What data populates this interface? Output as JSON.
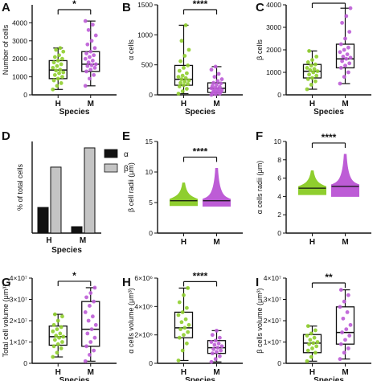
{
  "colors": {
    "human": "#8fce2e",
    "mouse": "#bd5cd6",
    "alpha_bar": "#111111",
    "beta_bar": "#c4c4c4"
  },
  "chart_data": [
    {
      "panel": "A",
      "type": "box",
      "ylabel": "Number of cells",
      "xlabel": "Species",
      "categories": [
        "H",
        "M"
      ],
      "ylim": [
        0,
        5000
      ],
      "yticks": [
        {
          "v": 0,
          "t": "0"
        },
        {
          "v": 1000,
          "t": "1000"
        },
        {
          "v": 2000,
          "t": "2000"
        },
        {
          "v": 3000,
          "t": "3000"
        },
        {
          "v": 4000,
          "t": "4000"
        }
      ],
      "significance": "*",
      "boxes": [
        {
          "min": 300,
          "q1": 900,
          "median": 1380,
          "q3": 1900,
          "max": 2600
        },
        {
          "min": 500,
          "q1": 1300,
          "median": 1700,
          "q3": 2400,
          "max": 4100
        }
      ],
      "points": [
        [
          300,
          500,
          650,
          800,
          900,
          1000,
          1100,
          1200,
          1250,
          1350,
          1400,
          1500,
          1600,
          1700,
          1800,
          1900,
          2000,
          2100,
          2200,
          2400,
          2500,
          2600
        ],
        [
          500,
          900,
          1100,
          1300,
          1400,
          1500,
          1600,
          1650,
          1700,
          1800,
          1900,
          2000,
          2100,
          2200,
          2300,
          2400,
          2600,
          2800,
          3000,
          3300,
          3600,
          3900,
          4100
        ]
      ]
    },
    {
      "panel": "B",
      "type": "box",
      "ylabel": "α cells",
      "xlabel": "Species",
      "categories": [
        "H",
        "M"
      ],
      "ylim": [
        0,
        1500
      ],
      "yticks": [
        {
          "v": 0,
          "t": "0"
        },
        {
          "v": 500,
          "t": "500"
        },
        {
          "v": 1000,
          "t": "1000"
        },
        {
          "v": 1500,
          "t": "1500"
        }
      ],
      "significance": "****",
      "boxes": [
        {
          "min": 20,
          "q1": 160,
          "median": 260,
          "q3": 490,
          "max": 1160
        },
        {
          "min": 0,
          "q1": 40,
          "median": 110,
          "q3": 200,
          "max": 470
        }
      ],
      "points": [
        [
          20,
          60,
          100,
          140,
          160,
          180,
          200,
          220,
          240,
          260,
          280,
          300,
          320,
          360,
          400,
          450,
          490,
          560,
          650,
          750,
          900,
          1160
        ],
        [
          0,
          10,
          20,
          30,
          40,
          50,
          60,
          70,
          80,
          90,
          100,
          110,
          120,
          130,
          150,
          170,
          190,
          200,
          230,
          260,
          300,
          350,
          420,
          470
        ]
      ]
    },
    {
      "panel": "C",
      "type": "box",
      "ylabel": "β cells",
      "xlabel": "Species",
      "categories": [
        "H",
        "M"
      ],
      "ylim": [
        0,
        4000
      ],
      "yticks": [
        {
          "v": 0,
          "t": "0"
        },
        {
          "v": 1000,
          "t": "1000"
        },
        {
          "v": 2000,
          "t": "2000"
        },
        {
          "v": 3000,
          "t": "3000"
        },
        {
          "v": 4000,
          "t": "4000"
        }
      ],
      "significance": "***",
      "boxes": [
        {
          "min": 250,
          "q1": 750,
          "median": 1050,
          "q3": 1350,
          "max": 1950
        },
        {
          "min": 500,
          "q1": 1200,
          "median": 1600,
          "q3": 2250,
          "max": 3850
        }
      ],
      "points": [
        [
          250,
          450,
          600,
          700,
          750,
          850,
          900,
          1000,
          1050,
          1100,
          1150,
          1200,
          1300,
          1350,
          1450,
          1550,
          1700,
          1950
        ],
        [
          500,
          800,
          1000,
          1200,
          1300,
          1400,
          1500,
          1600,
          1650,
          1700,
          1800,
          1900,
          2000,
          2100,
          2250,
          2500,
          2800,
          3200,
          3500,
          3850
        ]
      ]
    },
    {
      "panel": "D",
      "type": "bar",
      "ylabel": "% of total cells",
      "xlabel": "Species",
      "categories": [
        "H",
        "M"
      ],
      "ylim": [
        0,
        100
      ],
      "series": [
        {
          "name": "α",
          "values": [
            28,
            7
          ]
        },
        {
          "name": "β",
          "values": [
            72,
            93
          ]
        }
      ],
      "legend": "top-right"
    },
    {
      "panel": "E",
      "type": "violin",
      "ylabel": "β cell radii (μm)",
      "xlabel": "",
      "categories": [
        "H",
        "M"
      ],
      "ylim": [
        0,
        15
      ],
      "yticks": [
        {
          "v": 0,
          "t": "0"
        },
        {
          "v": 5,
          "t": "5"
        },
        {
          "v": 10,
          "t": "10"
        },
        {
          "v": 15,
          "t": "15"
        }
      ],
      "significance": "****",
      "violins": [
        {
          "min": 4.5,
          "max": 8.2,
          "median": 5.3
        },
        {
          "min": 4.4,
          "max": 10.6,
          "median": 5.3
        }
      ]
    },
    {
      "panel": "F",
      "type": "violin",
      "ylabel": "α cells radii (μm)",
      "xlabel": "",
      "categories": [
        "H",
        "M"
      ],
      "ylim": [
        0,
        10
      ],
      "yticks": [
        {
          "v": 0,
          "t": "0"
        },
        {
          "v": 2,
          "t": "2"
        },
        {
          "v": 4,
          "t": "4"
        },
        {
          "v": 6,
          "t": "6"
        },
        {
          "v": 8,
          "t": "8"
        },
        {
          "v": 10,
          "t": "10"
        }
      ],
      "significance": "****",
      "violins": [
        {
          "min": 4.2,
          "max": 6.8,
          "median": 4.9
        },
        {
          "min": 4.0,
          "max": 8.6,
          "median": 5.1
        }
      ]
    },
    {
      "panel": "G",
      "type": "box",
      "ylabel": "Total cell volume (μm³)",
      "xlabel": "Species",
      "categories": [
        "H",
        "M"
      ],
      "ylim": [
        0,
        40000000
      ],
      "yticks": [
        {
          "v": 0,
          "t": "0"
        },
        {
          "v": 10000000,
          "t": "1×10⁷"
        },
        {
          "v": 20000000,
          "t": "2×10⁷"
        },
        {
          "v": 30000000,
          "t": "3×10⁷"
        },
        {
          "v": 40000000,
          "t": "4×10⁷"
        }
      ],
      "significance": "*",
      "boxes": [
        {
          "min": 3000000,
          "q1": 8500000,
          "median": 12500000,
          "q3": 17500000,
          "max": 23000000
        },
        {
          "min": 1000000,
          "q1": 8000000,
          "median": 16000000,
          "q3": 29000000,
          "max": 35500000
        }
      ],
      "points": [
        [
          3000000,
          5000000,
          7000000,
          8000000,
          9000000,
          10000000,
          11000000,
          12000000,
          12500000,
          13000000,
          14000000,
          15000000,
          16000000,
          17000000,
          18000000,
          20000000,
          22000000,
          23000000
        ],
        [
          1000000,
          4000000,
          6000000,
          8000000,
          10000000,
          12000000,
          14000000,
          16000000,
          18000000,
          20000000,
          22000000,
          24000000,
          27000000,
          29000000,
          31000000,
          33000000,
          35500000
        ]
      ]
    },
    {
      "panel": "H",
      "type": "box",
      "ylabel": "α cells volume (μm³)",
      "xlabel": "Species",
      "categories": [
        "H",
        "M"
      ],
      "ylim": [
        0,
        6000000
      ],
      "yticks": [
        {
          "v": 0,
          "t": "0"
        },
        {
          "v": 2000000,
          "t": "2×10⁶"
        },
        {
          "v": 4000000,
          "t": "4×10⁶"
        },
        {
          "v": 6000000,
          "t": "6×10⁶"
        }
      ],
      "significance": "****",
      "boxes": [
        {
          "min": 200000,
          "q1": 1800000,
          "median": 2500000,
          "q3": 3600000,
          "max": 5300000
        },
        {
          "min": 100000,
          "q1": 700000,
          "median": 1100000,
          "q3": 1600000,
          "max": 2300000
        }
      ],
      "points": [
        [
          200000,
          900000,
          1400000,
          1800000,
          2000000,
          2200000,
          2400000,
          2500000,
          2700000,
          2900000,
          3100000,
          3400000,
          3600000,
          3900000,
          4300000,
          4800000,
          5300000
        ],
        [
          100000,
          300000,
          500000,
          700000,
          800000,
          900000,
          1000000,
          1100000,
          1200000,
          1300000,
          1400000,
          1500000,
          1600000,
          1800000,
          2000000,
          2300000
        ]
      ]
    },
    {
      "panel": "I",
      "type": "box",
      "ylabel": "β cells volume (μm³)",
      "xlabel": "Species",
      "categories": [
        "H",
        "M"
      ],
      "ylim": [
        0,
        40000000
      ],
      "yticks": [
        {
          "v": 0,
          "t": "0"
        },
        {
          "v": 10000000,
          "t": "1×10⁷"
        },
        {
          "v": 20000000,
          "t": "2×10⁷"
        },
        {
          "v": 30000000,
          "t": "3×10⁷"
        },
        {
          "v": 40000000,
          "t": "4×10⁷"
        }
      ],
      "significance": "**",
      "boxes": [
        {
          "min": 1000000,
          "q1": 5000000,
          "median": 9500000,
          "q3": 13500000,
          "max": 17500000
        },
        {
          "min": 2000000,
          "q1": 9000000,
          "median": 14500000,
          "q3": 26500000,
          "max": 34500000
        }
      ],
      "points": [
        [
          1000000,
          3000000,
          5000000,
          6000000,
          7000000,
          8000000,
          9000000,
          9500000,
          10000000,
          11000000,
          12000000,
          13000000,
          14000000,
          15500000,
          17500000
        ],
        [
          2000000,
          5000000,
          7000000,
          9000000,
          11000000,
          13000000,
          14500000,
          16000000,
          18000000,
          21000000,
          24000000,
          26500000,
          29000000,
          32000000,
          34500000
        ]
      ]
    }
  ]
}
